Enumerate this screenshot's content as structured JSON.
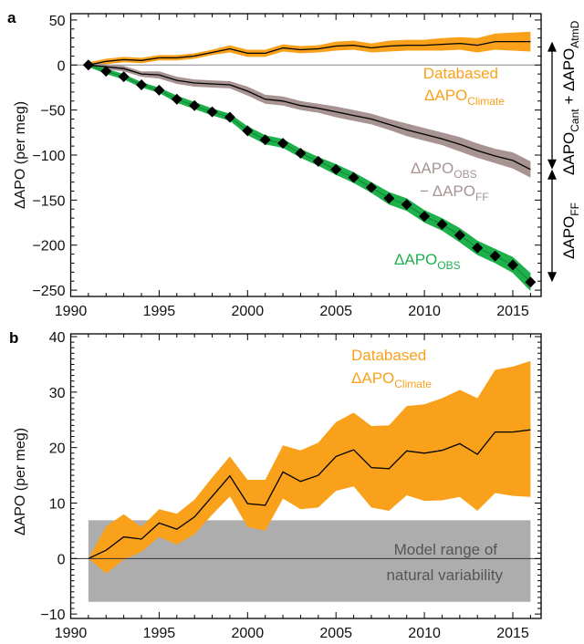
{
  "colors": {
    "climate": "#f9a11b",
    "obs": "#1db04b",
    "obs_minus_ff": "#a89393",
    "natural_var": "#adadad",
    "natural_var_text": "#555555",
    "line": "#000000",
    "zero_line": "#888888"
  },
  "chart_data": [
    {
      "panel": "a",
      "type": "line",
      "title": "",
      "xlabel": "",
      "ylabel": "ΔAPO (per meg)",
      "xlim": [
        1990,
        2016.6
      ],
      "ylim": [
        -257,
        57
      ],
      "xticks": [
        1990,
        1995,
        2000,
        2005,
        2010,
        2015
      ],
      "xtick_labels": [
        "1990",
        "1995",
        "2000",
        "2005",
        "2010",
        "2015"
      ],
      "yticks": [
        50,
        0,
        -50,
        -100,
        -150,
        -200,
        -250
      ],
      "ytick_labels": [
        "50",
        "0",
        "−50",
        "−100",
        "−150",
        "−200",
        "−250"
      ],
      "grid": false,
      "x": [
        1991,
        1992,
        1993,
        1994,
        1995,
        1996,
        1997,
        1998,
        1999,
        2000,
        2001,
        2002,
        2003,
        2004,
        2005,
        2006,
        2007,
        2008,
        2009,
        2010,
        2011,
        2012,
        2013,
        2014,
        2015,
        2016
      ],
      "series": [
        {
          "name": "Databased ΔAPO Climate",
          "color_key": "climate",
          "values": [
            0,
            4,
            6,
            5,
            8,
            8,
            10,
            14,
            18,
            13,
            13,
            19,
            17,
            18,
            21,
            22,
            19,
            21,
            22,
            22,
            23,
            24,
            22,
            26,
            26,
            26
          ],
          "band": [
            3,
            3,
            3,
            3,
            3,
            3,
            3,
            3,
            4,
            4,
            4,
            4,
            4,
            4,
            5,
            5,
            5,
            6,
            6,
            6,
            7,
            7,
            8,
            9,
            10,
            11
          ]
        },
        {
          "name": "ΔAPO OBS − ΔAPO FF",
          "color_key": "obs_minus_ff",
          "values": [
            0,
            -2,
            -4,
            -10,
            -11,
            -17,
            -20,
            -21,
            -22,
            -29,
            -38,
            -40,
            -45,
            -48,
            -52,
            -56,
            -60,
            -66,
            -72,
            -77,
            -82,
            -88,
            -95,
            -101,
            -106,
            -116
          ],
          "band": [
            2,
            3,
            3,
            3,
            4,
            4,
            4,
            4,
            4,
            5,
            5,
            5,
            5,
            5,
            6,
            6,
            6,
            6,
            7,
            7,
            7,
            8,
            8,
            8,
            9,
            9
          ]
        },
        {
          "name": "ΔAPO OBS",
          "color_key": "obs",
          "markers": "diamond",
          "values": [
            0,
            -7,
            -13,
            -22,
            -28,
            -38,
            -45,
            -52,
            -58,
            -73,
            -83,
            -87,
            -98,
            -107,
            -116,
            -125,
            -136,
            -148,
            -155,
            -168,
            -177,
            -189,
            -203,
            -212,
            -222,
            -241
          ],
          "band": [
            2,
            3,
            3,
            3,
            3,
            4,
            4,
            4,
            4,
            5,
            5,
            5,
            5,
            5,
            6,
            6,
            6,
            7,
            7,
            7,
            7,
            8,
            8,
            8,
            9,
            10
          ]
        }
      ],
      "annotations": [
        {
          "text": "Databased",
          "line2": "ΔAPO",
          "sub": "Climate",
          "color_key": "climate"
        },
        {
          "text": "ΔAPO",
          "sub": "OBS",
          "line2": "− ΔAPO",
          "sub2": "FF",
          "color_key": "obs_minus_ff"
        },
        {
          "text": "ΔAPO",
          "sub": "OBS",
          "color_key": "obs"
        }
      ],
      "side_arrows": [
        {
          "text": "ΔAPO",
          "sub": "Cant",
          "plus": " + ΔAPO",
          "sub2": "AtmD",
          "range": [
            26,
            -116
          ]
        },
        {
          "text": "ΔAPO",
          "sub": "FF",
          "range": [
            -116,
            -241
          ]
        }
      ]
    },
    {
      "panel": "b",
      "type": "area",
      "title": "",
      "xlabel": "",
      "ylabel": "ΔAPO (per meg)",
      "xlim": [
        1990,
        2016.6
      ],
      "ylim": [
        -10.8,
        40.5
      ],
      "xticks": [
        1990,
        1995,
        2000,
        2005,
        2010,
        2015
      ],
      "xtick_labels": [
        "1990",
        "1995",
        "2000",
        "2005",
        "2010",
        "2015"
      ],
      "yticks": [
        40,
        30,
        20,
        10,
        0,
        -10
      ],
      "ytick_labels": [
        "40",
        "30",
        "20",
        "10",
        "0",
        "−10"
      ],
      "grid": false,
      "x": [
        1991,
        1992,
        1993,
        1994,
        1995,
        1996,
        1997,
        1998,
        1999,
        2000,
        2001,
        2002,
        2003,
        2004,
        2005,
        2006,
        2007,
        2008,
        2009,
        2010,
        2011,
        2012,
        2013,
        2014,
        2015,
        2016
      ],
      "series": [
        {
          "name": "Databased ΔAPO Climate",
          "color_key": "climate",
          "values": [
            0,
            1.5,
            3.9,
            3.5,
            6.4,
            5.3,
            7.5,
            11.2,
            14.9,
            9.9,
            9.6,
            15.6,
            13.9,
            15.0,
            18.4,
            19.6,
            16.4,
            16.2,
            19.4,
            19.0,
            19.5,
            20.7,
            18.8,
            22.8,
            22.8,
            23.2
          ],
          "upper": [
            0,
            5.8,
            8.0,
            5.7,
            8.9,
            8.1,
            10.6,
            14.6,
            18.4,
            14.2,
            14.2,
            20.4,
            19.5,
            20.9,
            24.6,
            26.3,
            23.9,
            24.0,
            27.5,
            27.8,
            28.9,
            30.4,
            28.9,
            34.0,
            34.6,
            35.6
          ],
          "lower": [
            0,
            -2.7,
            -0.2,
            1.2,
            3.9,
            2.5,
            4.4,
            7.9,
            11.2,
            5.7,
            5.0,
            10.8,
            8.9,
            9.2,
            12.2,
            13.0,
            9.2,
            8.6,
            11.4,
            10.4,
            10.5,
            11.1,
            8.6,
            11.8,
            11.3,
            11.1
          ]
        }
      ],
      "shaded_region": {
        "label_line1": "Model range of",
        "label_line2": "natural variability",
        "y_range": [
          -7.8,
          6.9
        ],
        "x_range": [
          1991,
          2016
        ],
        "color_key": "natural_var"
      },
      "annotations": [
        {
          "text": "Databased",
          "line2": "ΔAPO",
          "sub": "Climate",
          "color_key": "climate"
        }
      ]
    }
  ],
  "panel_labels": [
    "a",
    "b"
  ]
}
